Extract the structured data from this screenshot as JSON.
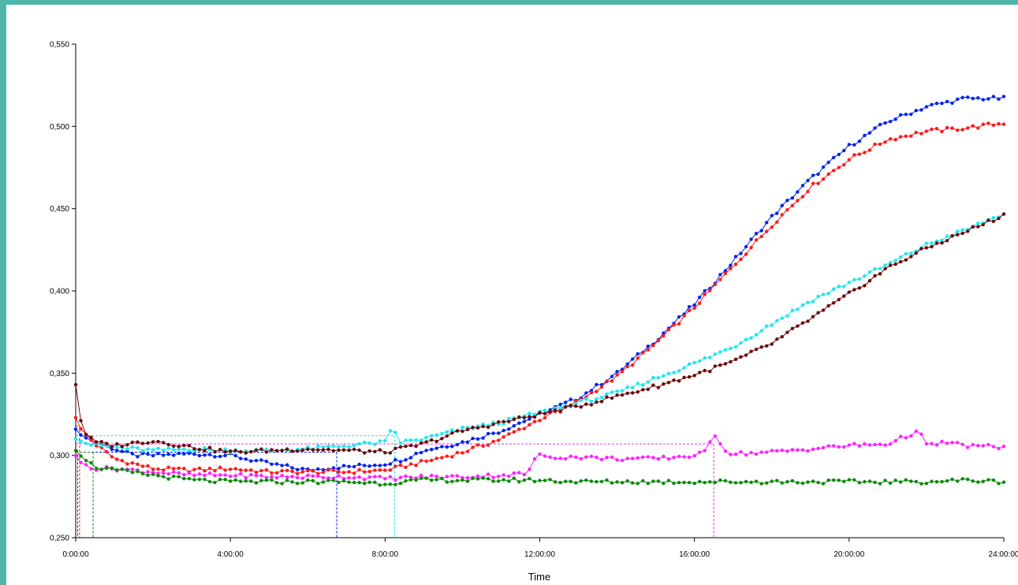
{
  "chart_data": {
    "type": "line",
    "xlabel": "Time",
    "ylabel": "",
    "xlim_hours": [
      0,
      24
    ],
    "ylim": [
      0.25,
      0.55
    ],
    "x_ticks": [
      {
        "h": 0,
        "label": "0:00:00"
      },
      {
        "h": 4,
        "label": "4:00:00"
      },
      {
        "h": 8,
        "label": "8:00:00"
      },
      {
        "h": 12,
        "label": "12:00:00"
      },
      {
        "h": 16,
        "label": "16:00:00"
      },
      {
        "h": 20,
        "label": "20:00:00"
      },
      {
        "h": 24,
        "label": "24:00:00"
      }
    ],
    "y_ticks": [
      {
        "v": 0.25,
        "label": "0,250"
      },
      {
        "v": 0.3,
        "label": "0,300"
      },
      {
        "v": 0.35,
        "label": "0,350"
      },
      {
        "v": 0.4,
        "label": "0,400"
      },
      {
        "v": 0.45,
        "label": "0,450"
      },
      {
        "v": 0.5,
        "label": "0,500"
      },
      {
        "v": 0.55,
        "label": "0,550"
      }
    ],
    "grid": false,
    "legend": "none",
    "series": [
      {
        "color": "#0022ee",
        "marker_hours": 6.75,
        "marker_value": 0.302,
        "points": [
          [
            0,
            0.316
          ],
          [
            0.15,
            0.312
          ],
          [
            0.5,
            0.308
          ],
          [
            1,
            0.304
          ],
          [
            1.5,
            0.3
          ],
          [
            2,
            0.3
          ],
          [
            3,
            0.301
          ],
          [
            4,
            0.3
          ],
          [
            5,
            0.295
          ],
          [
            6,
            0.291
          ],
          [
            6.7,
            0.293
          ],
          [
            7,
            0.293
          ],
          [
            8,
            0.295
          ],
          [
            8.5,
            0.298
          ],
          [
            9,
            0.303
          ],
          [
            10,
            0.308
          ],
          [
            11,
            0.315
          ],
          [
            12,
            0.325
          ],
          [
            13,
            0.335
          ],
          [
            14,
            0.35
          ],
          [
            15,
            0.37
          ],
          [
            16,
            0.392
          ],
          [
            17,
            0.418
          ],
          [
            18,
            0.445
          ],
          [
            19,
            0.468
          ],
          [
            20,
            0.488
          ],
          [
            21,
            0.503
          ],
          [
            22,
            0.512
          ],
          [
            23,
            0.517
          ],
          [
            24,
            0.517
          ]
        ]
      },
      {
        "color": "#ff1a1a",
        "marker_hours": 0.1,
        "marker_value": 0.318,
        "points": [
          [
            0,
            0.323
          ],
          [
            0.1,
            0.317
          ],
          [
            0.5,
            0.307
          ],
          [
            1,
            0.298
          ],
          [
            2,
            0.292
          ],
          [
            3,
            0.291
          ],
          [
            4,
            0.292
          ],
          [
            5,
            0.29
          ],
          [
            6,
            0.29
          ],
          [
            7,
            0.29
          ],
          [
            8,
            0.291
          ],
          [
            9,
            0.296
          ],
          [
            10,
            0.302
          ],
          [
            11,
            0.31
          ],
          [
            12,
            0.322
          ],
          [
            13,
            0.333
          ],
          [
            14,
            0.348
          ],
          [
            15,
            0.368
          ],
          [
            16,
            0.39
          ],
          [
            17,
            0.415
          ],
          [
            18,
            0.44
          ],
          [
            19,
            0.463
          ],
          [
            20,
            0.48
          ],
          [
            21,
            0.492
          ],
          [
            22,
            0.497
          ],
          [
            23,
            0.499
          ],
          [
            24,
            0.502
          ]
        ]
      },
      {
        "color": "#1ee8ee",
        "marker_hours": 8.25,
        "marker_value": 0.312,
        "points": [
          [
            0,
            0.31
          ],
          [
            0.3,
            0.307
          ],
          [
            1,
            0.305
          ],
          [
            2,
            0.303
          ],
          [
            3,
            0.304
          ],
          [
            4,
            0.303
          ],
          [
            5,
            0.303
          ],
          [
            6,
            0.304
          ],
          [
            7,
            0.306
          ],
          [
            8,
            0.308
          ],
          [
            8.2,
            0.317
          ],
          [
            8.4,
            0.308
          ],
          [
            9,
            0.31
          ],
          [
            10,
            0.316
          ],
          [
            11,
            0.32
          ],
          [
            12,
            0.326
          ],
          [
            13,
            0.332
          ],
          [
            14,
            0.338
          ],
          [
            15,
            0.347
          ],
          [
            16,
            0.356
          ],
          [
            17,
            0.366
          ],
          [
            18,
            0.38
          ],
          [
            19,
            0.394
          ],
          [
            20,
            0.405
          ],
          [
            21,
            0.416
          ],
          [
            22,
            0.428
          ],
          [
            23,
            0.437
          ],
          [
            24,
            0.447
          ]
        ]
      },
      {
        "color": "#6b0a0a",
        "marker_hours": 0.05,
        "marker_value": 0.303,
        "points": [
          [
            0,
            0.343
          ],
          [
            0.05,
            0.33
          ],
          [
            0.2,
            0.314
          ],
          [
            0.5,
            0.308
          ],
          [
            1,
            0.306
          ],
          [
            2,
            0.309
          ],
          [
            3,
            0.305
          ],
          [
            4,
            0.302
          ],
          [
            5,
            0.303
          ],
          [
            6,
            0.304
          ],
          [
            7,
            0.303
          ],
          [
            8,
            0.302
          ],
          [
            9,
            0.307
          ],
          [
            10,
            0.315
          ],
          [
            11,
            0.32
          ],
          [
            12,
            0.325
          ],
          [
            13,
            0.33
          ],
          [
            14,
            0.336
          ],
          [
            15,
            0.342
          ],
          [
            16,
            0.349
          ],
          [
            17,
            0.357
          ],
          [
            18,
            0.368
          ],
          [
            19,
            0.383
          ],
          [
            20,
            0.398
          ],
          [
            21,
            0.414
          ],
          [
            22,
            0.426
          ],
          [
            23,
            0.436
          ],
          [
            24,
            0.446
          ]
        ]
      },
      {
        "color": "#ff22ff",
        "marker_hours": 16.5,
        "marker_value": 0.307,
        "points": [
          [
            0,
            0.3
          ],
          [
            0.1,
            0.296
          ],
          [
            0.5,
            0.292
          ],
          [
            1,
            0.292
          ],
          [
            2,
            0.29
          ],
          [
            3,
            0.288
          ],
          [
            4,
            0.288
          ],
          [
            5,
            0.287
          ],
          [
            6,
            0.287
          ],
          [
            7,
            0.287
          ],
          [
            8,
            0.286
          ],
          [
            9,
            0.287
          ],
          [
            10,
            0.287
          ],
          [
            11,
            0.288
          ],
          [
            11.7,
            0.289
          ],
          [
            11.9,
            0.3
          ],
          [
            12.5,
            0.299
          ],
          [
            13,
            0.299
          ],
          [
            14,
            0.298
          ],
          [
            15,
            0.298
          ],
          [
            16,
            0.3
          ],
          [
            16.3,
            0.302
          ],
          [
            16.5,
            0.314
          ],
          [
            16.8,
            0.303
          ],
          [
            17,
            0.301
          ],
          [
            18,
            0.302
          ],
          [
            19,
            0.304
          ],
          [
            20,
            0.306
          ],
          [
            21,
            0.307
          ],
          [
            21.8,
            0.315
          ],
          [
            22,
            0.306
          ],
          [
            22.5,
            0.308
          ],
          [
            23,
            0.306
          ],
          [
            24,
            0.305
          ]
        ]
      },
      {
        "color": "#0a8a0a",
        "marker_hours": 0.45,
        "marker_value": 0.302,
        "points": [
          [
            0,
            0.303
          ],
          [
            0.2,
            0.298
          ],
          [
            0.5,
            0.293
          ],
          [
            1,
            0.291
          ],
          [
            2,
            0.288
          ],
          [
            3,
            0.285
          ],
          [
            4,
            0.284
          ],
          [
            5,
            0.284
          ],
          [
            6,
            0.284
          ],
          [
            7,
            0.284
          ],
          [
            8,
            0.283
          ],
          [
            9,
            0.285
          ],
          [
            10,
            0.285
          ],
          [
            11,
            0.285
          ],
          [
            12,
            0.285
          ],
          [
            13,
            0.284
          ],
          [
            14,
            0.284
          ],
          [
            15,
            0.284
          ],
          [
            16,
            0.284
          ],
          [
            17,
            0.284
          ],
          [
            18,
            0.284
          ],
          [
            19,
            0.284
          ],
          [
            20,
            0.284
          ],
          [
            21,
            0.284
          ],
          [
            22,
            0.284
          ],
          [
            23,
            0.285
          ],
          [
            24,
            0.284
          ]
        ]
      }
    ]
  }
}
